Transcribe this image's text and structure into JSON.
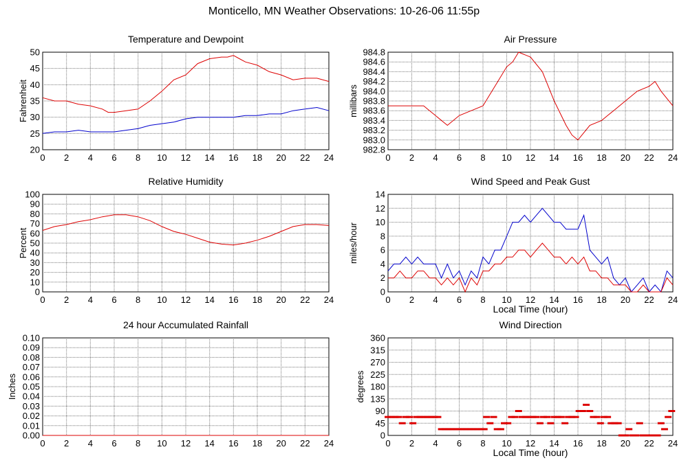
{
  "page_title": "Monticello, MN Weather Observations: 10-26-06 11:55p",
  "colors": {
    "red": "#dd0000",
    "blue": "#0000cc",
    "grid": "#777777"
  },
  "chart_data": [
    {
      "id": "temp",
      "type": "line",
      "title": "Temperature and Dewpoint",
      "xlabel": "",
      "ylabel": "Fahrenheit",
      "xlim": [
        0,
        24
      ],
      "ylim": [
        20,
        50
      ],
      "xticks": [
        0,
        2,
        4,
        6,
        8,
        10,
        12,
        14,
        16,
        18,
        20,
        22,
        24
      ],
      "yticks": [
        "20",
        "25",
        "30",
        "35",
        "40",
        "45",
        "50"
      ],
      "series": [
        {
          "color": "#dd0000",
          "x": [
            0,
            1,
            2,
            3,
            4,
            5,
            5.5,
            6,
            7,
            8,
            9,
            10,
            11,
            12,
            13,
            14,
            15,
            15.5,
            16,
            16.5,
            17,
            18,
            19,
            20,
            21,
            22,
            23,
            24
          ],
          "y": [
            36,
            35,
            35,
            34,
            33.5,
            32.5,
            31.5,
            31.5,
            32,
            32.5,
            35,
            38,
            41.5,
            43,
            46.5,
            48,
            48.5,
            48.5,
            49,
            48,
            47,
            46,
            44,
            43,
            41.5,
            42,
            42,
            41
          ]
        },
        {
          "color": "#0000cc",
          "x": [
            0,
            1,
            2,
            3,
            4,
            5,
            6,
            7,
            8,
            9,
            10,
            11,
            12,
            13,
            14,
            15,
            16,
            17,
            18,
            19,
            20,
            21,
            22,
            23,
            24
          ],
          "y": [
            25,
            25.5,
            25.5,
            26,
            25.5,
            25.5,
            25.5,
            26,
            26.5,
            27.5,
            28,
            28.5,
            29.5,
            30,
            30,
            30,
            30,
            30.5,
            30.5,
            31,
            31,
            32,
            32.5,
            33,
            32
          ]
        }
      ]
    },
    {
      "id": "pressure",
      "type": "line",
      "title": "Air Pressure",
      "xlabel": "",
      "ylabel": "millibars",
      "xlim": [
        0,
        24
      ],
      "ylim": [
        982.8,
        984.8
      ],
      "xticks": [
        0,
        2,
        4,
        6,
        8,
        10,
        12,
        14,
        16,
        18,
        20,
        22,
        24
      ],
      "yticks": [
        "982.8",
        "983.0",
        "983.2",
        "983.4",
        "983.6",
        "983.8",
        "984.0",
        "984.2",
        "984.4",
        "984.6",
        "984.8"
      ],
      "series": [
        {
          "color": "#dd0000",
          "x": [
            0,
            1,
            2,
            3,
            3.5,
            4,
            5,
            6,
            7,
            8,
            9,
            10,
            10.5,
            11,
            12,
            13,
            14,
            15,
            15.5,
            16,
            17,
            18,
            18.5,
            19,
            20,
            21,
            22,
            22.5,
            23,
            24
          ],
          "y": [
            983.7,
            983.7,
            983.7,
            983.7,
            983.6,
            983.5,
            983.3,
            983.5,
            983.6,
            983.7,
            984.1,
            984.5,
            984.6,
            984.8,
            984.7,
            984.4,
            983.8,
            983.3,
            983.1,
            983.0,
            983.3,
            983.4,
            983.5,
            983.6,
            983.8,
            984.0,
            984.1,
            984.2,
            984.0,
            983.7
          ]
        }
      ]
    },
    {
      "id": "humidity",
      "type": "line",
      "title": "Relative Humidity",
      "xlabel": "",
      "ylabel": "Percent",
      "xlim": [
        0,
        24
      ],
      "ylim": [
        0,
        100
      ],
      "xticks": [
        0,
        2,
        4,
        6,
        8,
        10,
        12,
        14,
        16,
        18,
        20,
        22,
        24
      ],
      "yticks": [
        "0",
        "10",
        "20",
        "30",
        "40",
        "50",
        "60",
        "70",
        "80",
        "90",
        "100"
      ],
      "series": [
        {
          "color": "#dd0000",
          "x": [
            0,
            1,
            2,
            3,
            4,
            5,
            6,
            7,
            8,
            9,
            10,
            11,
            12,
            13,
            14,
            15,
            16,
            17,
            18,
            19,
            20,
            21,
            22,
            23,
            24
          ],
          "y": [
            63,
            67,
            69,
            72,
            74,
            77,
            79,
            79,
            77,
            73,
            67,
            62,
            59,
            55,
            51,
            49,
            48,
            50,
            53,
            57,
            62,
            67,
            69,
            69,
            68
          ]
        }
      ]
    },
    {
      "id": "wind",
      "type": "line",
      "title": "Wind Speed and Peak Gust",
      "xlabel": "Local Time (hour)",
      "ylabel": "miles/hour",
      "xlim": [
        0,
        24
      ],
      "ylim": [
        0,
        14
      ],
      "xticks": [
        0,
        2,
        4,
        6,
        8,
        10,
        12,
        14,
        16,
        18,
        20,
        22,
        24
      ],
      "yticks": [
        "0",
        "2",
        "4",
        "6",
        "8",
        "10",
        "12",
        "14"
      ],
      "series": [
        {
          "color": "#0000cc",
          "x": [
            0,
            0.5,
            1,
            1.5,
            2,
            2.5,
            3,
            3.5,
            4,
            4.5,
            5,
            5.5,
            6,
            6.5,
            7,
            7.5,
            8,
            8.5,
            9,
            9.5,
            10,
            10.5,
            11,
            11.5,
            12,
            12.5,
            13,
            13.5,
            14,
            14.5,
            15,
            15.5,
            16,
            16.5,
            17,
            17.5,
            18,
            18.5,
            19,
            19.5,
            20,
            20.5,
            21,
            21.5,
            22,
            22.5,
            23,
            23.5,
            24
          ],
          "y": [
            3,
            4,
            4,
            5,
            4,
            5,
            4,
            4,
            4,
            2,
            4,
            2,
            3,
            1,
            3,
            2,
            5,
            4,
            6,
            6,
            8,
            10,
            10,
            11,
            10,
            11,
            12,
            11,
            10,
            10,
            9,
            9,
            9,
            11,
            6,
            5,
            4,
            5,
            2,
            1,
            2,
            0,
            1,
            2,
            0,
            1,
            0,
            3,
            2
          ]
        },
        {
          "color": "#dd0000",
          "x": [
            0,
            0.5,
            1,
            1.5,
            2,
            2.5,
            3,
            3.5,
            4,
            4.5,
            5,
            5.5,
            6,
            6.5,
            7,
            7.5,
            8,
            8.5,
            9,
            9.5,
            10,
            10.5,
            11,
            11.5,
            12,
            12.5,
            13,
            13.5,
            14,
            14.5,
            15,
            15.5,
            16,
            16.5,
            17,
            17.5,
            18,
            18.5,
            19,
            19.5,
            20,
            20.5,
            21,
            21.5,
            22,
            22.5,
            23,
            23.5,
            24
          ],
          "y": [
            2,
            2,
            3,
            2,
            2,
            3,
            3,
            2,
            2,
            1,
            2,
            1,
            2,
            0,
            2,
            1,
            3,
            3,
            4,
            4,
            5,
            5,
            6,
            6,
            5,
            6,
            7,
            6,
            5,
            5,
            4,
            5,
            4,
            5,
            3,
            3,
            2,
            2,
            1,
            1,
            1,
            0,
            0,
            1,
            0,
            0,
            0,
            2,
            1
          ]
        }
      ]
    },
    {
      "id": "rain",
      "type": "line",
      "title": "24 hour Accumulated Rainfall",
      "xlabel": "",
      "ylabel": "Inches",
      "xlim": [
        0,
        24
      ],
      "ylim": [
        0,
        0.1
      ],
      "xticks": [
        0,
        2,
        4,
        6,
        8,
        10,
        12,
        14,
        16,
        18,
        20,
        22,
        24
      ],
      "yticks": [
        "0.00",
        "0.01",
        "0.02",
        "0.03",
        "0.04",
        "0.05",
        "0.06",
        "0.07",
        "0.08",
        "0.09",
        "0.10"
      ],
      "series": [
        {
          "color": "#dd0000",
          "x": [
            0,
            24
          ],
          "y": [
            0,
            0
          ]
        }
      ]
    },
    {
      "id": "direction",
      "type": "scatter",
      "title": "Wind Direction",
      "xlabel": "Local Time (hour)",
      "ylabel": "degrees",
      "xlim": [
        0,
        24
      ],
      "ylim": [
        0,
        360
      ],
      "xticks": [
        0,
        2,
        4,
        6,
        8,
        10,
        12,
        14,
        16,
        18,
        20,
        22,
        24
      ],
      "yticks": [
        "0",
        "45",
        "90",
        "135",
        "180",
        "225",
        "270",
        "315",
        "360"
      ],
      "series": [
        {
          "color": "#dd0000",
          "x": [
            0,
            0.3,
            0.6,
            0.9,
            1.2,
            1.5,
            1.8,
            2.1,
            2.4,
            2.7,
            3.0,
            3.3,
            3.6,
            3.9,
            4.2,
            4.5,
            4.8,
            5.1,
            5.4,
            5.7,
            6.0,
            6.3,
            6.6,
            6.9,
            7.2,
            7.5,
            7.8,
            8.1,
            8.3,
            8.6,
            8.9,
            9.2,
            9.5,
            9.8,
            10.1,
            10.4,
            10.7,
            11.0,
            11.3,
            11.6,
            11.9,
            12.2,
            12.5,
            12.8,
            13.1,
            13.4,
            13.7,
            14.0,
            14.3,
            14.6,
            14.9,
            15.2,
            15.5,
            15.8,
            16.1,
            16.4,
            16.7,
            17.0,
            17.3,
            17.6,
            17.9,
            18.2,
            18.5,
            18.8,
            19.1,
            19.4,
            19.7,
            20.0,
            20.3,
            20.6,
            20.9,
            21.2,
            21.5,
            21.8,
            22.1,
            22.4,
            22.7,
            23.0,
            23.3,
            23.6,
            23.9
          ],
          "y": [
            68,
            68,
            68,
            68,
            45,
            68,
            68,
            45,
            68,
            68,
            68,
            68,
            68,
            68,
            68,
            23,
            23,
            23,
            23,
            23,
            23,
            23,
            23,
            23,
            23,
            23,
            23,
            23,
            68,
            45,
            68,
            23,
            23,
            45,
            45,
            68,
            68,
            90,
            68,
            68,
            68,
            68,
            68,
            45,
            68,
            68,
            45,
            68,
            68,
            68,
            45,
            68,
            68,
            68,
            90,
            90,
            113,
            90,
            68,
            68,
            45,
            68,
            68,
            45,
            45,
            45,
            0,
            0,
            23,
            0,
            0,
            45,
            0,
            0,
            0,
            0,
            0,
            45,
            23,
            68,
            90
          ]
        }
      ]
    }
  ]
}
